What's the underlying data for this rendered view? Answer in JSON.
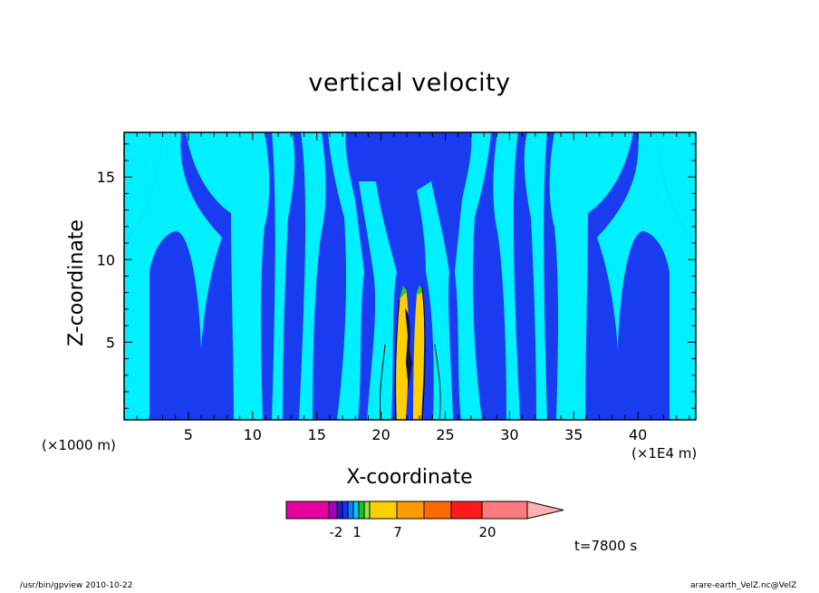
{
  "chart_data": {
    "type": "heatmap",
    "title": "vertical velocity",
    "xlabel": "X-coordinate",
    "ylabel": "Z-coordinate",
    "x_unit_left": "(×1000 m)",
    "x_unit_right": "(×1E4 m)",
    "x_ticks": [
      5,
      10,
      15,
      20,
      25,
      30,
      35,
      40
    ],
    "y_ticks": [
      5,
      10,
      15
    ],
    "xlim": [
      0,
      44.5
    ],
    "ylim": [
      0.3,
      17.7
    ],
    "time_label": "t=7800 s",
    "colorbar": {
      "tick_labels": [
        "-2",
        "1",
        "7",
        "20"
      ],
      "colors": [
        "#e7009f",
        "#e7009f",
        "#a000c8",
        "#2020c0",
        "#1430ff",
        "#0a80ff",
        "#00c8ff",
        "#18c818",
        "#90e050",
        "#ffff00",
        "#ffc800",
        "#ff9800",
        "#ff6a00",
        "#ff1a1a",
        "#ff7a7a",
        "#ffb0b0"
      ]
    },
    "field_colors": {
      "background_blue": "#1a3cf0",
      "light_cyan": "#00f0ff",
      "yellow": "#ffd000",
      "green": "#28d028"
    }
  },
  "footer": {
    "left": "/usr/bin/gpview   2010-10-22",
    "right": "arare-earth_VelZ.nc@VelZ"
  }
}
